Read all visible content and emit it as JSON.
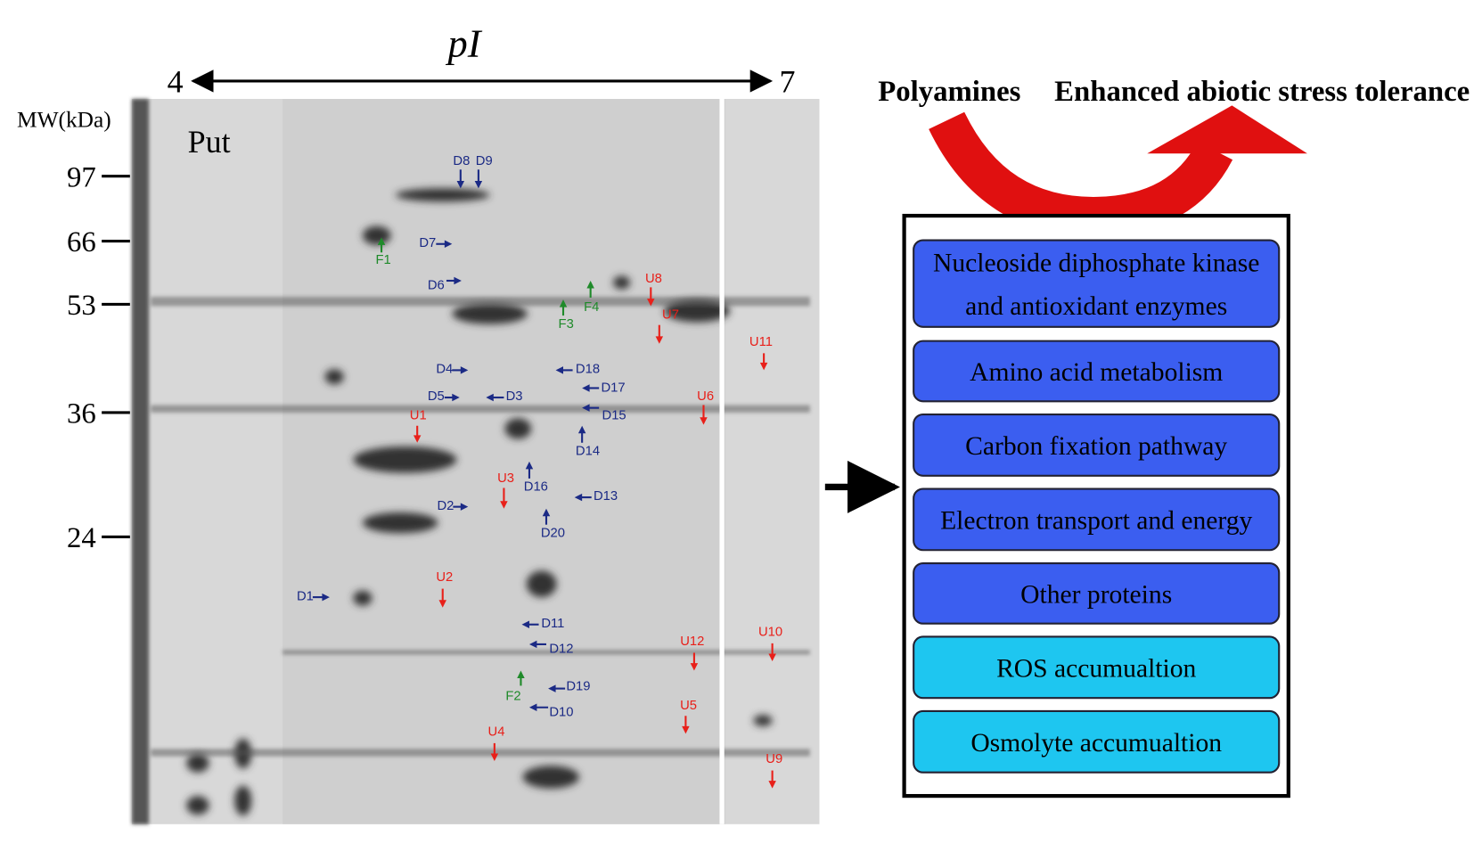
{
  "gel": {
    "pi_label": "pI",
    "pi_left": "4",
    "pi_right": "7",
    "mw_label": "MW(kDa)",
    "mw_ticks": [
      "97",
      "66",
      "53",
      "36",
      "24"
    ],
    "treatment": "Put",
    "spots": [
      {
        "label": "D8",
        "color": "#1b2a85"
      },
      {
        "label": "D9",
        "color": "#1b2a85"
      },
      {
        "label": "D7",
        "color": "#1b2a85"
      },
      {
        "label": "F1",
        "color": "#1f8a2a"
      },
      {
        "label": "D6",
        "color": "#1b2a85"
      },
      {
        "label": "U8",
        "color": "#e8201a"
      },
      {
        "label": "F4",
        "color": "#1f8a2a"
      },
      {
        "label": "F3",
        "color": "#1f8a2a"
      },
      {
        "label": "U7",
        "color": "#e8201a"
      },
      {
        "label": "U11",
        "color": "#e8201a"
      },
      {
        "label": "D4",
        "color": "#1b2a85"
      },
      {
        "label": "D18",
        "color": "#1b2a85"
      },
      {
        "label": "D17",
        "color": "#1b2a85"
      },
      {
        "label": "D5",
        "color": "#1b2a85"
      },
      {
        "label": "D3",
        "color": "#1b2a85"
      },
      {
        "label": "U6",
        "color": "#e8201a"
      },
      {
        "label": "U1",
        "color": "#e8201a"
      },
      {
        "label": "D15",
        "color": "#1b2a85"
      },
      {
        "label": "D14",
        "color": "#1b2a85"
      },
      {
        "label": "D16",
        "color": "#1b2a85"
      },
      {
        "label": "U3",
        "color": "#e8201a"
      },
      {
        "label": "D13",
        "color": "#1b2a85"
      },
      {
        "label": "D2",
        "color": "#1b2a85"
      },
      {
        "label": "D20",
        "color": "#1b2a85"
      },
      {
        "label": "U2",
        "color": "#e8201a"
      },
      {
        "label": "D1",
        "color": "#1b2a85"
      },
      {
        "label": "D11",
        "color": "#1b2a85"
      },
      {
        "label": "U10",
        "color": "#e8201a"
      },
      {
        "label": "U12",
        "color": "#e8201a"
      },
      {
        "label": "D12",
        "color": "#1b2a85"
      },
      {
        "label": "D19",
        "color": "#1b2a85"
      },
      {
        "label": "F2",
        "color": "#1f8a2a"
      },
      {
        "label": "D10",
        "color": "#1b2a85"
      },
      {
        "label": "U5",
        "color": "#e8201a"
      },
      {
        "label": "U4",
        "color": "#e8201a"
      },
      {
        "label": "U9",
        "color": "#e8201a"
      }
    ]
  },
  "diagram": {
    "source": "Polyamines",
    "outcome": "Enhanced abiotic stress tolerance",
    "boxes": [
      {
        "lines": [
          "Nucleoside diphosphate kinase",
          "and antioxidant enzymes"
        ],
        "color": "#3b5ef0"
      },
      {
        "lines": [
          "Amino acid metabolism"
        ],
        "color": "#3b5ef0"
      },
      {
        "lines": [
          "Carbon fixation pathway"
        ],
        "color": "#3b5ef0"
      },
      {
        "lines": [
          "Electron transport and energy"
        ],
        "color": "#3b5ef0"
      },
      {
        "lines": [
          "Other proteins"
        ],
        "color": "#3b5ef0"
      },
      {
        "lines": [
          "ROS accumualtion"
        ],
        "color": "#1ec6f0"
      },
      {
        "lines": [
          "Osmolyte accumualtion"
        ],
        "color": "#1ec6f0"
      }
    ]
  }
}
